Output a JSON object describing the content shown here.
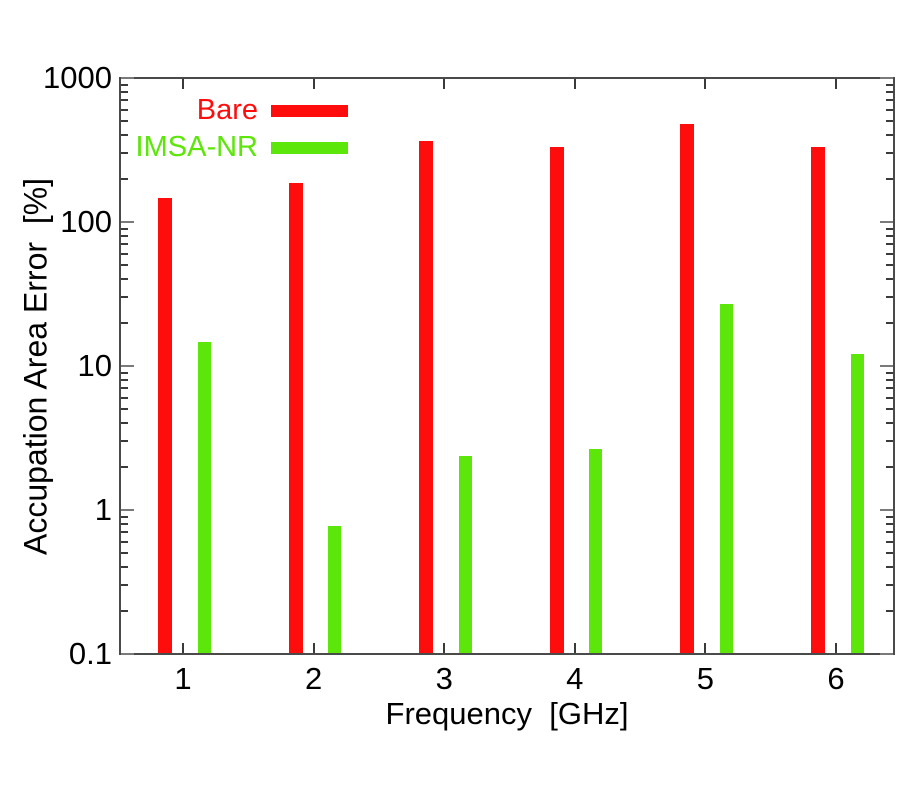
{
  "chart_data": {
    "type": "bar",
    "title": "",
    "xlabel": "Frequency  [GHz]",
    "ylabel": "Accupation Area Error  [%]",
    "x": [
      1,
      2,
      3,
      4,
      5,
      6
    ],
    "x_tick_labels": [
      "1",
      "2",
      "3",
      "4",
      "5",
      "6"
    ],
    "y_scale": "log",
    "ylim": [
      0.1,
      1000
    ],
    "y_ticks": [
      1000,
      100,
      10,
      1,
      0.1
    ],
    "y_tick_labels": [
      "1000",
      "100",
      "10",
      "1",
      "0.1"
    ],
    "grid": false,
    "legend_position": "top-left-inside",
    "frame_color": "#4a4a4a",
    "series": [
      {
        "name": "Bare",
        "color": "#ff0d0d",
        "values": [
          145,
          185,
          360,
          325,
          470,
          325
        ]
      },
      {
        "name": "IMSA-NR",
        "color": "#5ce60a",
        "values": [
          14.5,
          0.76,
          2.35,
          2.6,
          26.5,
          12
        ]
      }
    ]
  }
}
